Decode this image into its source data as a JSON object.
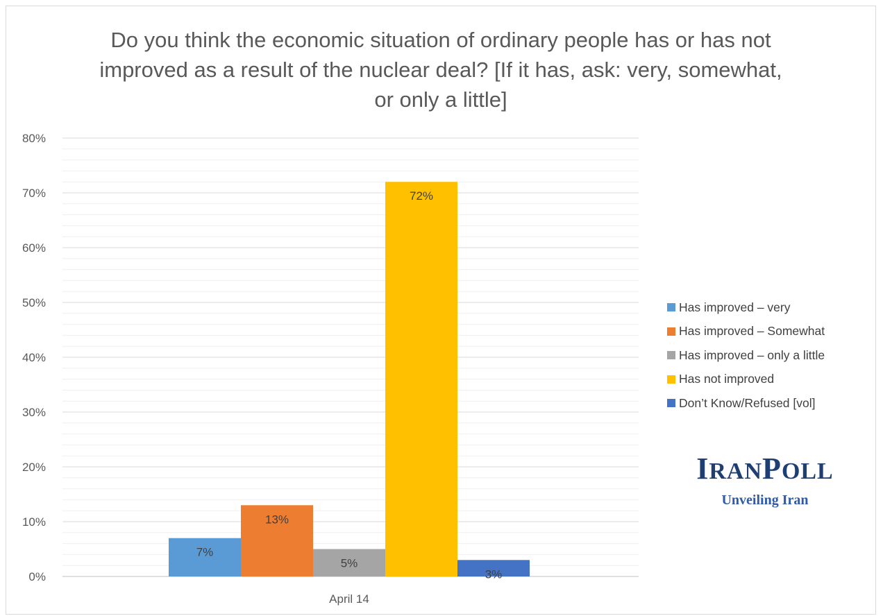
{
  "chart_data": {
    "type": "bar",
    "title": "Do you think the economic situation of ordinary people has or has not improved as a result of the nuclear deal? [If it has, ask: very, somewhat, or only a little]",
    "categories": [
      "April 14"
    ],
    "series": [
      {
        "name": "Has improved – very",
        "values": [
          7
        ],
        "label": "7%",
        "color": "#5b9bd5"
      },
      {
        "name": "Has improved – Somewhat",
        "values": [
          13
        ],
        "label": "13%",
        "color": "#ed7d31"
      },
      {
        "name": "Has improved – only a little",
        "values": [
          5
        ],
        "label": "5%",
        "color": "#a5a5a5"
      },
      {
        "name": "Has not improved",
        "values": [
          72
        ],
        "label": "72%",
        "color": "#ffc000"
      },
      {
        "name": "Don’t Know/Refused [vol]",
        "values": [
          3
        ],
        "label": "3%",
        "color": "#4472c4"
      }
    ],
    "ylim": [
      0,
      80
    ],
    "yticks": [
      "0%",
      "10%",
      "20%",
      "30%",
      "40%",
      "50%",
      "60%",
      "70%",
      "80%"
    ],
    "ytick_values": [
      0,
      10,
      20,
      30,
      40,
      50,
      60,
      70,
      80
    ],
    "xlabel": "",
    "ylabel": "",
    "grid": true,
    "legend_position": "right"
  },
  "logo": {
    "name_big1": "I",
    "name_small1": "RAN",
    "name_big2": "P",
    "name_small2": "OLL",
    "tagline": "Unveiling Iran"
  }
}
